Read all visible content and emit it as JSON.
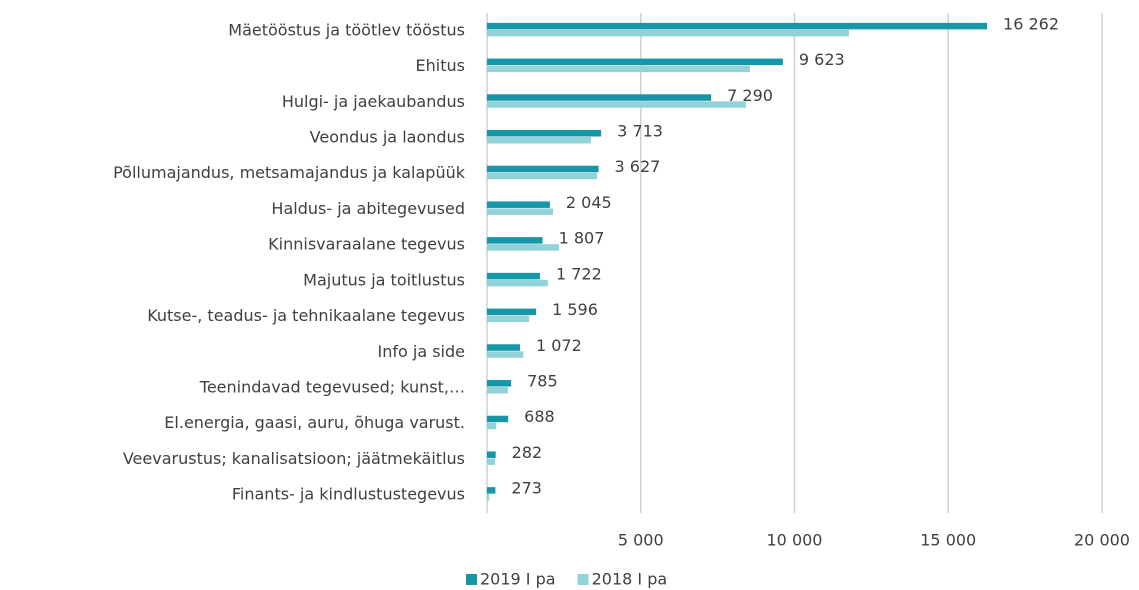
{
  "chart_data": {
    "type": "bar",
    "orientation": "horizontal",
    "categories": [
      "Mäetööstus ja töötlev tööstus",
      "Ehitus",
      "Hulgi- ja jaekaubandus",
      "Veondus ja laondus",
      "Põllumajandus, metsamajandus ja kalapüük",
      "Haldus- ja abitegevused",
      "Kinnisvaraalane tegevus",
      "Majutus ja toitlustus",
      "Kutse-, teadus- ja tehnikaalane tegevus",
      "Info ja side",
      "Teenindavad tegevused; kunst,…",
      "El.energia, gaasi, auru, õhuga varust.",
      "Veevarustus; kanalisatsioon; jäätmekäitlus",
      "Finants- ja kindlustustegevus"
    ],
    "series": [
      {
        "name": "2019 I pa",
        "color": "#1597a8",
        "values": [
          16262,
          9623,
          7290,
          3713,
          3627,
          2045,
          1807,
          1722,
          1596,
          1072,
          785,
          688,
          282,
          273
        ],
        "value_labels": [
          "16 262",
          "9 623",
          "7 290",
          "3 713",
          "3 627",
          "2 045",
          "1 807",
          "1 722",
          "1 596",
          "1 072",
          "785",
          "688",
          "282",
          "273"
        ]
      },
      {
        "name": "2018 I pa",
        "color": "#92d3da",
        "values": [
          11770,
          8550,
          8420,
          3380,
          3580,
          2150,
          2340,
          1980,
          1370,
          1180,
          680,
          300,
          260,
          70
        ]
      }
    ],
    "xlim": [
      0,
      20000
    ],
    "xticks": [
      {
        "value": 5000,
        "label": "5 000"
      },
      {
        "value": 10000,
        "label": "10 000"
      },
      {
        "value": 15000,
        "label": "15 000"
      },
      {
        "value": 20000,
        "label": "20 000"
      }
    ],
    "grid": true,
    "legend": "bottom"
  }
}
